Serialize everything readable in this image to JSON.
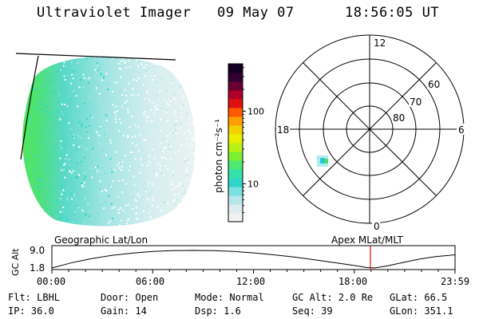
{
  "header": {
    "instrument": "Ultraviolet Imager",
    "date": "09 May 07",
    "time": "18:56:05 UT"
  },
  "colorbar": {
    "unit_label": "photon cm⁻²s⁻¹",
    "ticks": [
      {
        "value": 100,
        "label": "100"
      },
      {
        "value": 10,
        "label": "10"
      }
    ],
    "min": 3,
    "max": 450,
    "scale": "log",
    "colors": [
      "#f2f2f2",
      "#dcecef",
      "#b6e6ea",
      "#7be0e0",
      "#2fd6c8",
      "#36e0a8",
      "#50e870",
      "#7cf030",
      "#b8f018",
      "#e8f000",
      "#f5d000",
      "#ffa000",
      "#ff5a00",
      "#e01010",
      "#b0002a",
      "#6a0030",
      "#300030",
      "#140022"
    ]
  },
  "polar_plot": {
    "mlt_labels": [
      {
        "label": "12",
        "position": "top"
      },
      {
        "label": "6",
        "position": "right"
      },
      {
        "label": "0",
        "position": "bottom"
      },
      {
        "label": "18",
        "position": "left"
      }
    ],
    "lat_labels": [
      "60",
      "70",
      "80"
    ],
    "lat_rings": [
      80,
      70,
      60,
      50
    ]
  },
  "timeline": {
    "left_title": "Geographic Lat/Lon",
    "right_title": "Apex MLat/MLT",
    "axis_label": "GC Alt",
    "y_labels": [
      "9.0",
      "1.8"
    ],
    "x_labels": [
      "00:00",
      "06:00",
      "12:00",
      "18:00",
      "23:59"
    ],
    "current_time_fraction": 0.79,
    "orbit_alt": [
      [
        0.0,
        1.8
      ],
      [
        0.05,
        4.0
      ],
      [
        0.1,
        5.7
      ],
      [
        0.15,
        7.0
      ],
      [
        0.2,
        7.9
      ],
      [
        0.25,
        8.6
      ],
      [
        0.3,
        8.9
      ],
      [
        0.35,
        9.0
      ],
      [
        0.4,
        8.9
      ],
      [
        0.45,
        8.6
      ],
      [
        0.5,
        8.0
      ],
      [
        0.55,
        7.2
      ],
      [
        0.6,
        6.3
      ],
      [
        0.65,
        5.2
      ],
      [
        0.7,
        4.0
      ],
      [
        0.75,
        2.8
      ],
      [
        0.78,
        2.0
      ],
      [
        0.8,
        1.8
      ],
      [
        0.83,
        2.6
      ],
      [
        0.87,
        4.0
      ],
      [
        0.91,
        5.4
      ],
      [
        0.95,
        6.4
      ],
      [
        1.0,
        7.2
      ]
    ]
  },
  "info": {
    "filter": "Flt: LBHL",
    "ip": "IP: 36.0",
    "door": "Door: Open",
    "gain": "Gain: 14",
    "mode": "Mode: Normal",
    "dsp": "Dsp:    1.6",
    "gc_alt": "GC Alt: 2.0 Re",
    "seq": "Seq: 39",
    "glat": "GLat:  66.5",
    "glon": "GLon: 351.1"
  }
}
